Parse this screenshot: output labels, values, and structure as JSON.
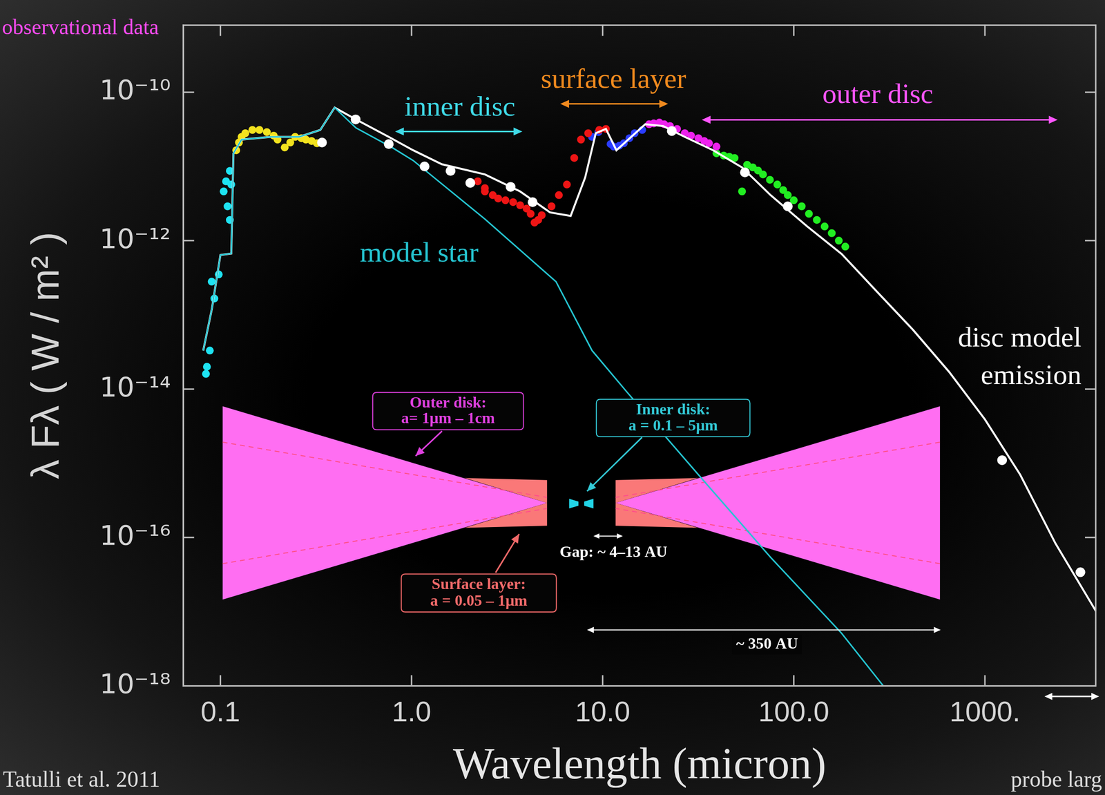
{
  "chart_data": {
    "type": "scatter",
    "x_label": "Wavelength (micron)",
    "y_label": "λ Fλ ( W / m² )",
    "log": true,
    "grid": false,
    "xlim": [
      0.064,
      3800
    ],
    "ylim": [
      1e-18,
      8e-10
    ],
    "xticks": [
      0.1,
      {
        "value": 1,
        "label": "1.0"
      },
      {
        "value": 10,
        "label": "10.0"
      },
      {
        "value": 100,
        "label": "100.0"
      },
      {
        "value": 1000,
        "label": "1000."
      }
    ],
    "yticks": [
      {
        "value": 1e-18,
        "label": "10⁻¹⁸"
      },
      {
        "value": 1e-16,
        "label": "10⁻¹⁶"
      },
      {
        "value": 1e-14,
        "label": "10⁻¹⁴"
      },
      {
        "value": 1e-12,
        "label": "10⁻¹²"
      },
      {
        "value": 1e-10,
        "label": "10⁻¹⁰"
      }
    ],
    "series": [
      {
        "name": "model star",
        "type": "line",
        "color": "#25c4d0",
        "x": [
          0.0813,
          0.0902,
          0.1,
          0.114,
          0.117,
          0.129,
          0.183,
          0.258,
          0.333,
          0.396,
          0.512,
          0.79,
          1.02,
          2.42,
          5.7,
          8.8,
          13.4,
          31.7,
          75.6,
          178,
          294
        ],
        "values": [
          3.3e-14,
          1.2e-13,
          6.4e-13,
          6.7e-13,
          1.5e-11,
          2.3e-11,
          2.5e-11,
          2.5e-11,
          3.1e-11,
          6.2e-11,
          3.3e-11,
          1.8e-11,
          1.2e-11,
          1.95e-12,
          2.8e-13,
          3.3e-14,
          9.1e-15,
          7e-16,
          5.4e-17,
          5.1e-18,
          1e-18
        ]
      },
      {
        "name": "disc model emission",
        "type": "line",
        "color": "#ffffff",
        "x": [
          0.0813,
          0.0902,
          0.1,
          0.114,
          0.117,
          0.129,
          0.183,
          0.258,
          0.333,
          0.396,
          0.512,
          0.76,
          1.02,
          1.44,
          2.42,
          3.7,
          5.3,
          6.8,
          8.1,
          9.2,
          10.4,
          11.8,
          14.1,
          16.7,
          20.7,
          26.9,
          37.9,
          53.6,
          75.6,
          117,
          178,
          275,
          420,
          650,
          1000,
          1530,
          2340,
          3840
        ],
        "values": [
          3.3e-14,
          1.2e-13,
          6.4e-13,
          6.7e-13,
          1.5e-11,
          2.3e-11,
          2.5e-11,
          2.5e-11,
          3.1e-11,
          6.2e-11,
          4.3e-11,
          2.5e-11,
          1.65e-11,
          1.07e-11,
          7.8e-12,
          4.6e-12,
          2.4e-12,
          2.15e-12,
          7.1e-12,
          2.8e-11,
          3.2e-11,
          1.65e-11,
          2.5e-11,
          3.7e-11,
          3.5e-11,
          2.5e-11,
          1.65e-11,
          9.7e-12,
          4.1e-12,
          1.57e-12,
          6.6e-13,
          2e-13,
          6.3e-14,
          1.7e-14,
          3.9e-15,
          7e-16,
          8.3e-17,
          9.8e-18
        ]
      },
      {
        "type": "scatter",
        "color": "#1ee3f2",
        "marker": "circle",
        "x": [
          0.084,
          0.085,
          0.088,
          0.09,
          0.093,
          0.098,
          0.104,
          0.107,
          0.109,
          0.112,
          0.112,
          0.114
        ],
        "values": [
          1.6e-14,
          2e-14,
          3.3e-14,
          2.8e-13,
          1.66e-13,
          3.5e-13,
          4.6e-12,
          6.3e-12,
          2.9e-12,
          1.9e-12,
          8.7e-12,
          5.7e-12
        ]
      },
      {
        "type": "scatter",
        "color": "#f2e21e",
        "marker": "circle",
        "x": [
          0.121,
          0.125,
          0.129,
          0.135,
          0.147,
          0.16,
          0.175,
          0.19,
          0.199,
          0.217,
          0.232,
          0.246,
          0.265,
          0.28,
          0.3,
          0.32
        ],
        "values": [
          1.65e-11,
          2.1e-11,
          2.5e-11,
          2.8e-11,
          3.1e-11,
          3.1e-11,
          2.9e-11,
          2.6e-11,
          2.3e-11,
          1.8e-11,
          2.1e-11,
          2.5e-11,
          2.4e-11,
          2.3e-11,
          2.2e-11,
          2.05e-11
        ]
      },
      {
        "type": "scatter",
        "color": "#ee1515",
        "marker": "circle",
        "x": [
          2.22,
          2.42,
          2.42,
          2.66,
          2.84,
          3.1,
          3.4,
          3.7,
          4.0,
          4.2,
          4.4,
          4.6,
          4.8,
          5.4,
          5.9,
          6.5,
          7.1,
          7.7,
          8.4,
          9.6,
          10.4
        ],
        "values": [
          6.3e-12,
          4.6e-12,
          5.1e-12,
          4.1e-12,
          3.7e-12,
          3.5e-12,
          3.3e-12,
          3e-12,
          2.7e-12,
          2.3e-12,
          1.75e-12,
          1.9e-12,
          2.2e-12,
          2.9e-12,
          4.1e-12,
          5.7e-12,
          1.3e-11,
          2.3e-11,
          2.8e-11,
          3.1e-11,
          3.2e-11
        ]
      },
      {
        "type": "scatter",
        "color": "#2a3cff",
        "marker": "circle",
        "x": [
          8.8,
          9.5,
          11.0,
          11.4,
          12.2,
          12.9,
          13.8,
          14.7,
          16.1
        ],
        "values": [
          2.5e-11,
          2.9e-11,
          2e-11,
          1.85e-11,
          1.9e-11,
          2.05e-11,
          2.4e-11,
          2.8e-11,
          3.1e-11
        ]
      },
      {
        "type": "scatter",
        "color": "#ee22ee",
        "marker": "circle",
        "x": [
          17.5,
          18.5,
          19.8,
          21,
          22.5,
          24.5,
          26.9,
          29,
          31.7,
          34,
          36,
          39.4
        ],
        "values": [
          3.7e-11,
          3.8e-11,
          3.9e-11,
          3.7e-11,
          3.5e-11,
          3.2e-11,
          2.8e-11,
          2.6e-11,
          2.4e-11,
          2.2e-11,
          2.05e-11,
          1.85e-11
        ]
      },
      {
        "type": "scatter",
        "color": "#22ee22",
        "marker": "circle",
        "x": [
          39.4,
          43,
          46,
          49,
          53.6,
          57,
          61,
          65,
          69,
          75,
          82,
          88,
          93,
          100,
          110,
          120,
          132,
          145,
          158,
          172,
          186
        ],
        "values": [
          1.5e-11,
          1.4e-11,
          1.35e-11,
          1.3e-11,
          4.6e-12,
          1.05e-11,
          9.7e-12,
          8.8e-12,
          7.8e-12,
          6.6e-12,
          5.7e-12,
          4.8e-12,
          4.1e-12,
          3.5e-12,
          2.9e-12,
          2.3e-12,
          1.9e-12,
          1.55e-12,
          1.26e-12,
          1e-12,
          8.3e-13
        ]
      },
      {
        "type": "scatter",
        "color": "#ffffff",
        "marker": "circle",
        "x": [
          0.34,
          0.51,
          0.76,
          1.17,
          1.6,
          2.03,
          3.3,
          4.3,
          23,
          55.5,
          93,
          1230,
          3160
        ],
        "values": [
          2.1e-11,
          4.3e-11,
          2e-11,
          1e-11,
          8.7e-12,
          6e-12,
          5.3e-12,
          3.3e-12,
          3e-11,
          8.3e-12,
          2.9e-12,
          1.1e-15,
          3.4e-17
        ]
      }
    ],
    "annotations": [
      {
        "text": "observational data",
        "color": "#ff4cf5"
      },
      {
        "text": "inner disc",
        "color": "#3fd9e6",
        "x_range": [
          0.82,
          3.8
        ]
      },
      {
        "text": "surface layer",
        "color": "#f08a1e",
        "x_range": [
          6,
          22
        ]
      },
      {
        "text": "outer disc",
        "color": "#ff55ff",
        "x_range": [
          33,
          2400
        ]
      },
      {
        "text": "Tatulli et al. 2011",
        "color": "#dddddd"
      },
      {
        "text": "probe larg",
        "color": "#dddddd"
      }
    ],
    "inset": {
      "labels": [
        {
          "title": "Outer disk:",
          "text": "a= 1μm – 1cm",
          "color": "#e040e0"
        },
        {
          "title": "Inner disk:",
          "text": "a = 0.1 – 5μm",
          "color": "#33c9d6"
        },
        {
          "title": "Surface layer:",
          "text": "a = 0.05 – 1μm",
          "color": "#f26a6a"
        }
      ],
      "gap": "Gap: ~ 4–13 AU",
      "size": "~ 350 AU"
    }
  }
}
